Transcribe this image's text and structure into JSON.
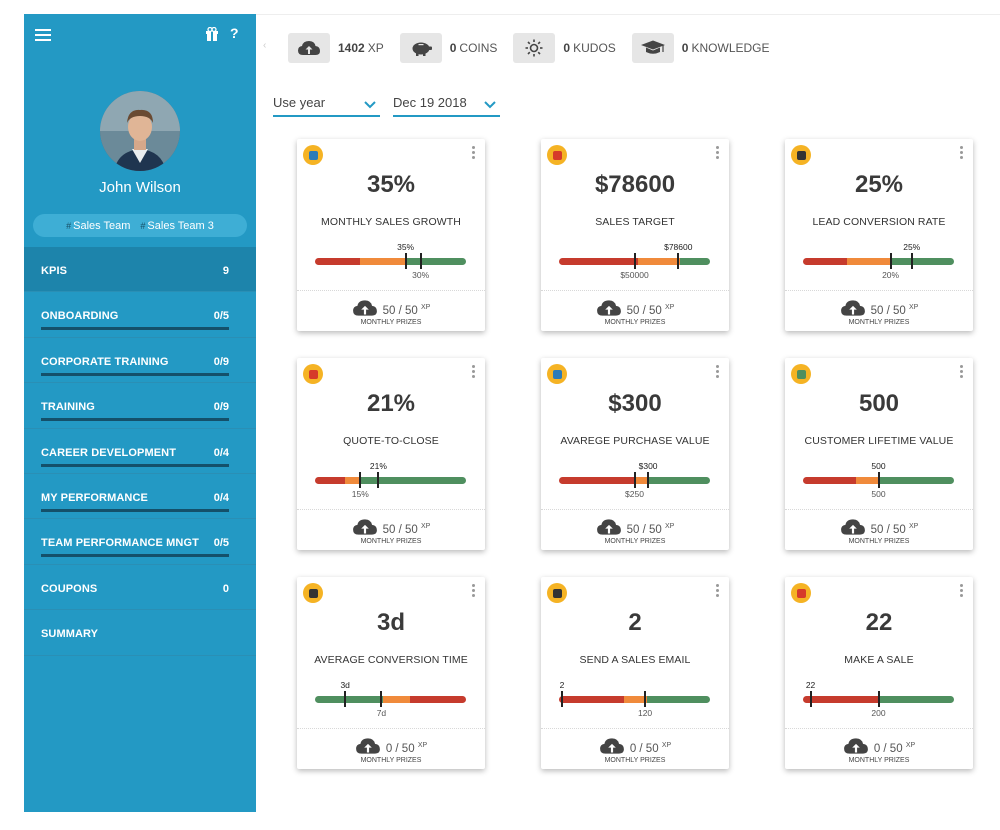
{
  "sidebar": {
    "user_name": "John Wilson",
    "teams": [
      "Sales Team",
      "Sales Team 3"
    ],
    "items": [
      {
        "label": "KPIS",
        "count": "9",
        "active": true,
        "bar": false
      },
      {
        "label": "ONBOARDING",
        "count": "0/5",
        "active": false,
        "bar": true
      },
      {
        "label": "CORPORATE TRAINING",
        "count": "0/9",
        "active": false,
        "bar": true
      },
      {
        "label": "TRAINING",
        "count": "0/9",
        "active": false,
        "bar": true
      },
      {
        "label": "CAREER DEVELOPMENT",
        "count": "0/4",
        "active": false,
        "bar": true
      },
      {
        "label": "MY PERFORMANCE",
        "count": "0/4",
        "active": false,
        "bar": true
      },
      {
        "label": "TEAM PERFORMANCE MNGT",
        "count": "0/5",
        "active": false,
        "bar": true
      },
      {
        "label": "COUPONS",
        "count": "0",
        "active": false,
        "bar": false
      },
      {
        "label": "SUMMARY",
        "count": "",
        "active": false,
        "bar": false
      }
    ]
  },
  "stats": [
    {
      "value": "1402",
      "label": "XP",
      "icon": "cloud-upload-icon"
    },
    {
      "value": "0",
      "label": "COINS",
      "icon": "piggy-bank-icon"
    },
    {
      "value": "0",
      "label": "KUDOS",
      "icon": "sun-icon"
    },
    {
      "value": "0",
      "label": "KNOWLEDGE",
      "icon": "graduation-cap-icon"
    }
  ],
  "filters": {
    "period": "Use year",
    "date": "Dec 19 2018"
  },
  "prize_label": "MONTHLY PRIZES",
  "cards": [
    {
      "value": "35%",
      "title": "MONTHLY SALES GROWTH",
      "icon_color": "#2b7bb9",
      "icon": "chart-icon",
      "segments": [
        [
          "r",
          0.3
        ],
        [
          "o",
          0.3
        ],
        [
          "g",
          0.4
        ]
      ],
      "current_label": "35%",
      "current_pos": 0.6,
      "target_label": "30%",
      "target_pos": 0.7,
      "xp": "50 / 50"
    },
    {
      "value": "$78600",
      "title": "SALES TARGET",
      "icon_color": "#d63a2a",
      "icon": "rocket-icon",
      "segments": [
        [
          "r",
          0.52
        ],
        [
          "o",
          0.28
        ],
        [
          "g",
          0.2
        ]
      ],
      "current_label": "$78600",
      "current_pos": 0.79,
      "target_label": "$50000",
      "target_pos": 0.5,
      "xp": "50 / 50"
    },
    {
      "value": "25%",
      "title": "LEAD CONVERSION RATE",
      "icon_color": "#333333",
      "icon": "bars-icon",
      "segments": [
        [
          "r",
          0.29
        ],
        [
          "o",
          0.29
        ],
        [
          "g",
          0.42
        ]
      ],
      "current_label": "25%",
      "current_pos": 0.72,
      "target_label": "20%",
      "target_pos": 0.58,
      "xp": "50 / 50"
    },
    {
      "value": "21%",
      "title": "QUOTE-TO-CLOSE",
      "icon_color": "#d63a2a",
      "icon": "factory-icon",
      "segments": [
        [
          "r",
          0.2
        ],
        [
          "o",
          0.1
        ],
        [
          "g",
          0.7
        ]
      ],
      "current_label": "21%",
      "current_pos": 0.42,
      "target_label": "15%",
      "target_pos": 0.3,
      "xp": "50 / 50"
    },
    {
      "value": "$300",
      "title": "AVAREGE PURCHASE VALUE",
      "icon_color": "#2b7bb9",
      "icon": "shirt-icon",
      "segments": [
        [
          "r",
          0.5
        ],
        [
          "o",
          0.08
        ],
        [
          "g",
          0.42
        ]
      ],
      "current_label": "$300",
      "current_pos": 0.59,
      "target_label": "$250",
      "target_pos": 0.5,
      "xp": "50 / 50"
    },
    {
      "value": "500",
      "title": "CUSTOMER LIFETIME VALUE",
      "icon_color": "#4f8f5f",
      "icon": "money-icon",
      "segments": [
        [
          "r",
          0.35
        ],
        [
          "o",
          0.15
        ],
        [
          "g",
          0.5
        ]
      ],
      "current_label": "500",
      "current_pos": 0.5,
      "target_label": "500",
      "target_pos": 0.5,
      "xp": "50 / 50"
    },
    {
      "value": "3d",
      "title": "AVERAGE CONVERSION TIME",
      "icon_color": "#333333",
      "icon": "coffee-icon",
      "segments": [
        [
          "g",
          0.45
        ],
        [
          "o",
          0.18
        ],
        [
          "r",
          0.37
        ]
      ],
      "current_label": "3d",
      "current_pos": 0.2,
      "target_label": "7d",
      "target_pos": 0.44,
      "xp": "0 / 50"
    },
    {
      "value": "2",
      "title": "SEND A SALES EMAIL",
      "icon_color": "#333333",
      "icon": "laptop-icon",
      "segments": [
        [
          "r",
          0.43
        ],
        [
          "o",
          0.15
        ],
        [
          "g",
          0.42
        ]
      ],
      "current_label": "2",
      "current_pos": 0.02,
      "target_label": "120",
      "target_pos": 0.57,
      "xp": "0 / 50"
    },
    {
      "value": "22",
      "title": "MAKE A SALE",
      "icon_color": "#d63a2a",
      "icon": "handshake-icon",
      "segments": [
        [
          "r",
          0.5
        ],
        [
          "g",
          0.5
        ]
      ],
      "current_label": "22",
      "current_pos": 0.05,
      "target_label": "200",
      "target_pos": 0.5,
      "xp": "0 / 50"
    }
  ]
}
